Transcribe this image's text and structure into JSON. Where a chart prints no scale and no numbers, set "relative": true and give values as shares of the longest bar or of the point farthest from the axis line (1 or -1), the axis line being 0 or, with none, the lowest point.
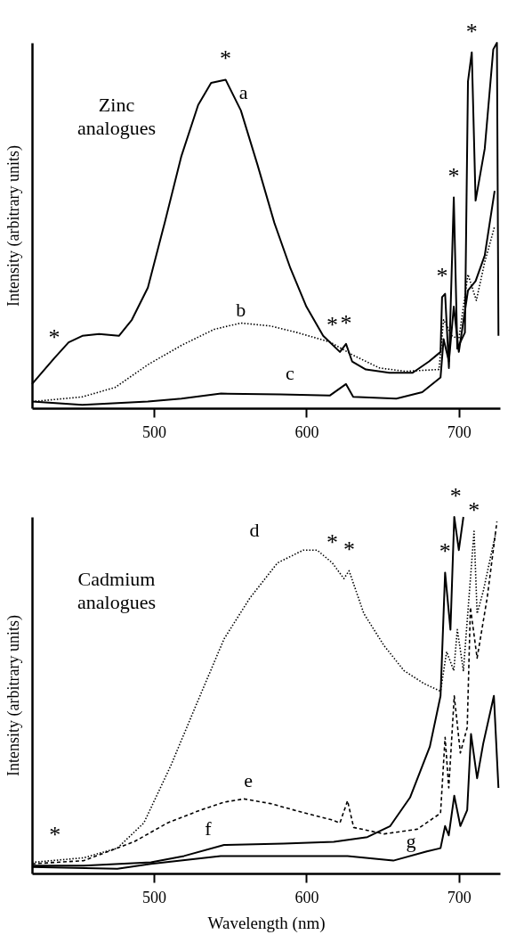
{
  "chart_data": [
    {
      "type": "line",
      "title": "Zinc analogues",
      "ylabel": "Intensity (arbitrary units)",
      "relative": true,
      "xlim": [
        420,
        727
      ],
      "xticks": [
        500,
        600,
        700
      ],
      "grid": false,
      "series": [
        {
          "name": "a",
          "color": "#000000",
          "line_style": "solid",
          "x": [
            420,
            434.6,
            444,
            453,
            464,
            477,
            485.5,
            496,
            507,
            518,
            529,
            537.5,
            547,
            557,
            568,
            579,
            589.5,
            600,
            611,
            622,
            626,
            630,
            639,
            654.5,
            669.7,
            680.5,
            688,
            689,
            691,
            693.5,
            696.7,
            699,
            704,
            706,
            708.5,
            711,
            717,
            722.6,
            725,
            726
          ],
          "values": [
            0.066,
            0.137,
            0.18,
            0.198,
            0.203,
            0.198,
            0.242,
            0.33,
            0.507,
            0.69,
            0.83,
            0.89,
            0.899,
            0.815,
            0.665,
            0.507,
            0.383,
            0.278,
            0.198,
            0.154,
            0.176,
            0.128,
            0.106,
            0.097,
            0.097,
            0.128,
            0.154,
            0.304,
            0.313,
            0.11,
            0.577,
            0.163,
            0.207,
            0.894,
            0.974,
            0.568,
            0.71,
            0.982,
            1.0,
            0.198
          ]
        },
        {
          "name": "b",
          "color": "#000000",
          "line_style": "dotted",
          "x": [
            420,
            453,
            474.6,
            496,
            518,
            539.6,
            557,
            576.5,
            594,
            615.5,
            630.7,
            648,
            665,
            687,
            690,
            695.6,
            700,
            706,
            711.5,
            717,
            723.5
          ],
          "values": [
            0.018,
            0.031,
            0.057,
            0.119,
            0.172,
            0.216,
            0.233,
            0.225,
            0.207,
            0.181,
            0.145,
            0.11,
            0.101,
            0.106,
            0.242,
            0.198,
            0.189,
            0.366,
            0.295,
            0.4,
            0.498
          ]
        },
        {
          "name": "c",
          "color": "#000000",
          "line_style": "solid",
          "x": [
            420,
            453,
            496,
            518,
            544,
            583,
            615.5,
            626,
            630.7,
            659,
            676,
            688,
            690,
            693.5,
            696.7,
            700,
            706,
            711,
            717,
            723.5
          ],
          "values": [
            0.018,
            0.009,
            0.018,
            0.026,
            0.04,
            0.038,
            0.035,
            0.066,
            0.031,
            0.026,
            0.044,
            0.084,
            0.189,
            0.128,
            0.278,
            0.154,
            0.322,
            0.348,
            0.418,
            0.595
          ]
        }
      ],
      "annotations": [
        {
          "text": "*",
          "x": 434.6,
          "y": 0.137
        },
        {
          "text": "*",
          "x": 547,
          "y": 0.899
        },
        {
          "text": "*",
          "x": 617,
          "y": 0.17
        },
        {
          "text": "*",
          "x": 626,
          "y": 0.176
        },
        {
          "text": "*",
          "x": 689,
          "y": 0.304
        },
        {
          "text": "*",
          "x": 696.7,
          "y": 0.577
        },
        {
          "text": "*",
          "x": 708.5,
          "y": 0.974
        }
      ]
    },
    {
      "type": "line",
      "title": "Cadmium analogues",
      "xlabel": "Wavelength (nm)",
      "ylabel": "Intensity (arbitrary units)",
      "relative": true,
      "xlim": [
        420,
        727
      ],
      "xticks": [
        500,
        600,
        700
      ],
      "grid": false,
      "series": [
        {
          "name": "d",
          "color": "#000000",
          "line_style": "dotted",
          "x": [
            420,
            454,
            476,
            493.4,
            511,
            528.4,
            546,
            563,
            581,
            598,
            607,
            617,
            624.6,
            628,
            637.7,
            650.8,
            664,
            677,
            688,
            692,
            696.7,
            699,
            703,
            710,
            712,
            716,
            724
          ],
          "values": [
            0.031,
            0.044,
            0.071,
            0.142,
            0.302,
            0.48,
            0.658,
            0.773,
            0.871,
            0.907,
            0.907,
            0.871,
            0.827,
            0.849,
            0.729,
            0.64,
            0.569,
            0.533,
            0.511,
            0.622,
            0.569,
            0.684,
            0.569,
            0.96,
            0.729,
            0.791,
            0.951
          ]
        },
        {
          "name": "e",
          "color": "#000000",
          "line_style": "dashed",
          "x": [
            420,
            454,
            487,
            509,
            530.6,
            546,
            559,
            576.5,
            596,
            616,
            622,
            627,
            631,
            651,
            672.7,
            688,
            691,
            693.4,
            697,
            701,
            705.5,
            707.6,
            712,
            718.6,
            725
          ],
          "values": [
            0.027,
            0.036,
            0.089,
            0.142,
            0.178,
            0.2,
            0.209,
            0.196,
            0.173,
            0.151,
            0.142,
            0.204,
            0.129,
            0.111,
            0.124,
            0.169,
            0.382,
            0.24,
            0.498,
            0.338,
            0.409,
            0.747,
            0.604,
            0.773,
            0.987
          ]
        },
        {
          "name": "f",
          "color": "#000000",
          "line_style": "solid",
          "x": [
            420,
            454,
            498,
            519.7,
            546,
            585,
            618,
            640,
            655,
            668,
            681,
            688,
            691,
            694.5,
            697,
            700,
            703
          ],
          "values": [
            0.022,
            0.022,
            0.031,
            0.049,
            0.08,
            0.084,
            0.089,
            0.102,
            0.133,
            0.213,
            0.356,
            0.498,
            0.844,
            0.684,
            1.0,
            0.907,
            1.0
          ]
        },
        {
          "name": "g",
          "color": "#000000",
          "line_style": "solid",
          "x": [
            420,
            476,
            498,
            543.7,
            585,
            627,
            657,
            679,
            688,
            691,
            693.4,
            697,
            701,
            705.5,
            708,
            712,
            716,
            723,
            726
          ],
          "values": [
            0.018,
            0.013,
            0.027,
            0.049,
            0.049,
            0.049,
            0.036,
            0.062,
            0.071,
            0.133,
            0.107,
            0.218,
            0.133,
            0.178,
            0.391,
            0.267,
            0.364,
            0.498,
            0.24
          ]
        }
      ],
      "annotations": [
        {
          "text": "*",
          "x": 435,
          "y": 0.05
        },
        {
          "text": "*",
          "x": 617,
          "y": 0.871
        },
        {
          "text": "*",
          "x": 628,
          "y": 0.849
        },
        {
          "text": "*",
          "x": 691,
          "y": 0.844
        },
        {
          "text": "*",
          "x": 698,
          "y": 1.0
        },
        {
          "text": "*",
          "x": 710,
          "y": 0.96
        }
      ]
    }
  ]
}
